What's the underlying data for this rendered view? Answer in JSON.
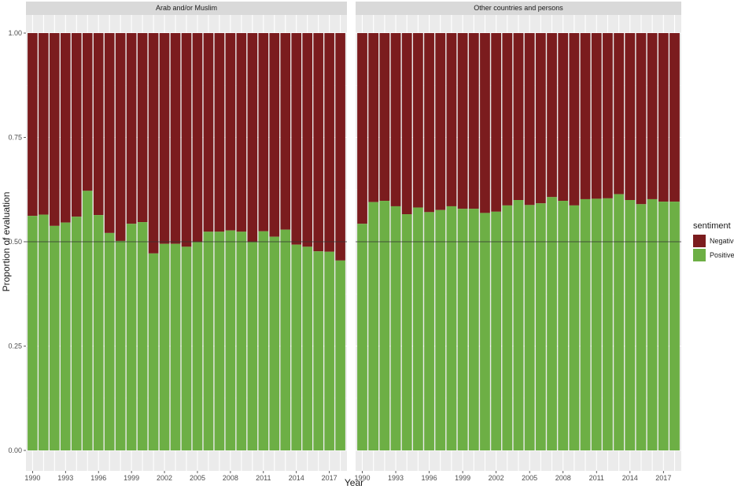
{
  "chart_data": {
    "type": "bar",
    "stacked": true,
    "xlabel": "Year",
    "ylabel": "Proportion of evaluation",
    "ylim": [
      0,
      1
    ],
    "y_ticks": [
      "0.00",
      "0.25",
      "0.50",
      "0.75",
      "1.00"
    ],
    "x_ticks": [
      "1990",
      "1993",
      "1996",
      "1999",
      "2002",
      "2005",
      "2008",
      "2011",
      "2014",
      "2017"
    ],
    "reference_line_y": 0.5,
    "grid": true,
    "legend": {
      "title": "sentiment",
      "position": "right",
      "entries": [
        {
          "name": "Negative",
          "color": "#7b1c1e"
        },
        {
          "name": "Positive",
          "color": "#6daf45"
        }
      ]
    },
    "panels": [
      {
        "title": "Arab and/or Muslim",
        "x": [
          1990,
          1991,
          1992,
          1993,
          1994,
          1995,
          1996,
          1997,
          1998,
          1999,
          2000,
          2001,
          2002,
          2003,
          2004,
          2005,
          2006,
          2007,
          2008,
          2009,
          2010,
          2011,
          2012,
          2013,
          2014,
          2015,
          2016,
          2017,
          2018
        ],
        "positive": [
          0.562,
          0.565,
          0.538,
          0.546,
          0.56,
          0.622,
          0.564,
          0.521,
          0.502,
          0.543,
          0.547,
          0.472,
          0.495,
          0.495,
          0.488,
          0.499,
          0.524,
          0.524,
          0.527,
          0.524,
          0.499,
          0.525,
          0.512,
          0.529,
          0.493,
          0.488,
          0.477,
          0.476,
          0.455
        ]
      },
      {
        "title": "Other countries and persons",
        "x": [
          1990,
          1991,
          1992,
          1993,
          1994,
          1995,
          1996,
          1997,
          1998,
          1999,
          2000,
          2001,
          2002,
          2003,
          2004,
          2005,
          2006,
          2007,
          2008,
          2009,
          2010,
          2011,
          2012,
          2013,
          2014,
          2015,
          2016,
          2017,
          2018
        ],
        "positive": [
          0.543,
          0.595,
          0.598,
          0.585,
          0.566,
          0.582,
          0.571,
          0.576,
          0.585,
          0.579,
          0.579,
          0.569,
          0.572,
          0.587,
          0.6,
          0.588,
          0.592,
          0.607,
          0.598,
          0.587,
          0.602,
          0.603,
          0.604,
          0.614,
          0.6,
          0.59,
          0.602,
          0.596,
          0.596
        ]
      }
    ]
  }
}
